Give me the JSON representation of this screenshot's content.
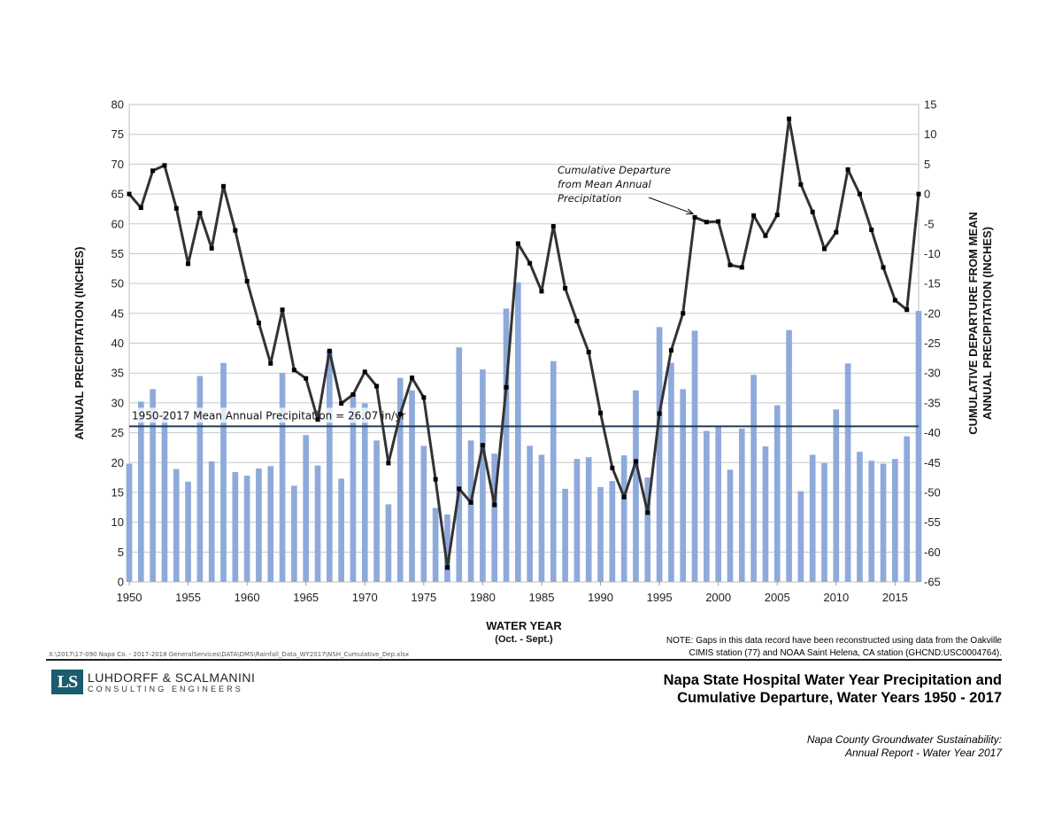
{
  "chart_data": {
    "type": "bar",
    "x": [
      1950,
      1951,
      1952,
      1953,
      1954,
      1955,
      1956,
      1957,
      1958,
      1959,
      1960,
      1961,
      1962,
      1963,
      1964,
      1965,
      1966,
      1967,
      1968,
      1969,
      1970,
      1971,
      1972,
      1973,
      1974,
      1975,
      1976,
      1977,
      1978,
      1979,
      1980,
      1981,
      1982,
      1983,
      1984,
      1985,
      1986,
      1987,
      1988,
      1989,
      1990,
      1991,
      1992,
      1993,
      1994,
      1995,
      1996,
      1997,
      1998,
      1999,
      2000,
      2001,
      2002,
      2003,
      2004,
      2005,
      2006,
      2007,
      2008,
      2009,
      2010,
      2011,
      2012,
      2013,
      2014,
      2015,
      2016,
      2017
    ],
    "series": [
      {
        "type": "bar",
        "axis": "left",
        "color": "#8eaadb",
        "values": [
          19.8,
          30.2,
          32.3,
          28.6,
          18.9,
          16.8,
          34.5,
          20.2,
          36.7,
          18.4,
          17.8,
          19.0,
          19.4,
          35.0,
          16.1,
          24.6,
          19.5,
          38.8,
          17.3,
          31.6,
          29.9,
          23.7,
          13.0,
          34.2,
          32.1,
          22.8,
          12.4,
          11.3,
          39.3,
          23.7,
          35.6,
          21.5,
          45.8,
          50.2,
          22.8,
          21.3,
          37.0,
          15.6,
          20.6,
          20.9,
          15.9,
          16.9,
          21.2,
          32.1,
          17.5,
          42.7,
          36.7,
          32.3,
          42.1,
          25.3,
          26.1,
          18.8,
          25.7,
          34.7,
          22.7,
          29.6,
          42.2,
          15.2,
          21.3,
          19.9,
          28.9,
          36.6,
          21.8,
          20.3,
          19.8,
          20.6,
          24.4,
          45.4
        ]
      },
      {
        "type": "line",
        "axis": "right",
        "color": "#333333",
        "values": [
          0,
          -2.3,
          3.9,
          4.8,
          -2.4,
          -11.7,
          -3.2,
          -9.1,
          1.3,
          -6.1,
          -14.6,
          -21.6,
          -28.4,
          -19.4,
          -29.5,
          -30.9,
          -37.8,
          -26.3,
          -35.1,
          -33.6,
          -29.8,
          -32.2,
          -45.1,
          -36.9,
          -30.8,
          -34.1,
          -47.8,
          -62.6,
          -49.4,
          -51.7,
          -42.1,
          -52.1,
          -32.4,
          -8.3,
          -11.6,
          -16.3,
          -5.4,
          -15.8,
          -21.3,
          -26.5,
          -36.7,
          -45.9,
          -50.8,
          -44.8,
          -53.4,
          -36.8,
          -26.2,
          -20.0,
          -3.9,
          -4.7,
          -4.6,
          -11.9,
          -12.3,
          -3.6,
          -7.0,
          -3.5,
          12.6,
          1.6,
          -3.0,
          -9.2,
          -6.4,
          4.1,
          0.0,
          -6.0,
          -12.3,
          -17.8,
          -19.4,
          0.0
        ]
      }
    ],
    "mean": 26.07,
    "mean_label": "1950-2017 Mean Annual Precipitation = 26.07 in/yr",
    "annotation_lines": [
      "Cumulative Departure",
      "from Mean Annual",
      "Precipitation"
    ],
    "xlabel": "WATER YEAR",
    "xlabel_sub": "(Oct. - Sept.)",
    "ylabel": "ANNUAL PRECIPITATION (INCHES)",
    "y2label_lines": [
      "CUMULATIVE DEPARTURE FROM MEAN",
      "ANNUAL PRECIPITATION (INCHES)"
    ],
    "ylim": [
      0,
      80
    ],
    "y2lim": [
      -65,
      15
    ],
    "xticks": [
      1950,
      1955,
      1960,
      1965,
      1970,
      1975,
      1980,
      1985,
      1990,
      1995,
      2000,
      2005,
      2010,
      2015
    ],
    "yticks": [
      0,
      5,
      10,
      15,
      20,
      25,
      30,
      35,
      40,
      45,
      50,
      55,
      60,
      65,
      70,
      75,
      80
    ],
    "y2ticks": [
      -65,
      -60,
      -55,
      -50,
      -45,
      -40,
      -35,
      -30,
      -25,
      -20,
      -15,
      -10,
      -5,
      0,
      5,
      10,
      15
    ],
    "grid": true
  },
  "file_path": "X:\\2017\\17-090 Napa Co. - 2017-2018 GeneralServices\\DATA\\DMS\\Rainfall_Data_WY2017\\NSH_Cumulative_Dep.xlsx",
  "note_lines": [
    "NOTE: Gaps in this data record have been reconstructed using data from the Oakville",
    "CIMIS station (77) and NOAA Saint Helena, CA station (GHCND:USC0004764)."
  ],
  "logo": {
    "mark": "LS",
    "name": "LUHDORFF & SCALMANINI",
    "sub": "CONSULTING ENGINEERS",
    "color": "#1b5c6e"
  },
  "title_lines": [
    "Napa State Hospital Water Year Precipitation and",
    "Cumulative Departure, Water Years 1950 - 2017"
  ],
  "subtitle_lines": [
    "Napa County Groundwater Sustainability:",
    "Annual Report - Water Year 2017"
  ]
}
